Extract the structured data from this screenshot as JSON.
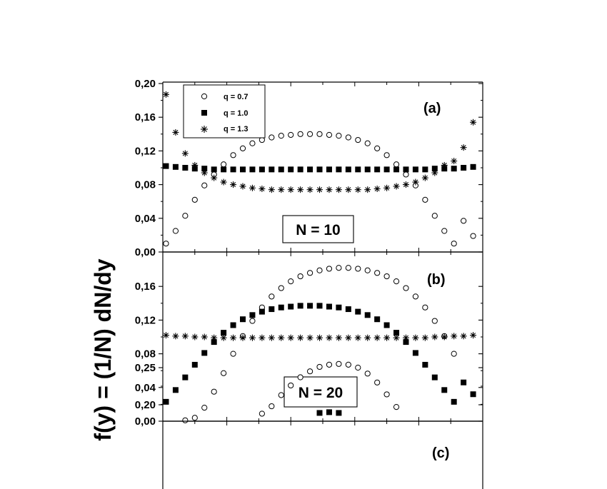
{
  "figure": {
    "ylabel": "f(y) = (1/N) dN/dy"
  },
  "legend": {
    "items": [
      {
        "label": "q = 0.7",
        "marker": "open-circle"
      },
      {
        "label": "q = 1.0",
        "marker": "filled-square"
      },
      {
        "label": "q = 1.3",
        "marker": "asterisk"
      }
    ]
  },
  "chart_data": [
    {
      "type": "scatter",
      "panel_label": "(a)",
      "annotation": "N = 10",
      "ylim": [
        0,
        0.2
      ],
      "yticks": [
        "0,00",
        "0,04",
        "0,08",
        "0,12",
        "0,16",
        "0,20"
      ],
      "ytick_values": [
        0,
        0.04,
        0.08,
        0.12,
        0.16,
        0.2
      ],
      "grid": false,
      "legend_position": "top-left",
      "series": [
        {
          "name": "q = 0.7",
          "marker": "open-circle",
          "x": [
            0.01,
            0.04,
            0.07,
            0.1,
            0.13,
            0.16,
            0.19,
            0.22,
            0.25,
            0.28,
            0.31,
            0.34,
            0.37,
            0.4,
            0.43,
            0.46,
            0.49,
            0.52,
            0.55,
            0.58,
            0.61,
            0.64,
            0.67,
            0.7,
            0.73,
            0.76,
            0.79,
            0.82,
            0.85,
            0.88,
            0.91,
            0.94,
            0.97
          ],
          "y": [
            0.01,
            0.025,
            0.043,
            0.062,
            0.079,
            0.092,
            0.104,
            0.115,
            0.123,
            0.129,
            0.133,
            0.136,
            0.138,
            0.139,
            0.14,
            0.14,
            0.14,
            0.139,
            0.138,
            0.136,
            0.133,
            0.129,
            0.123,
            0.115,
            0.104,
            0.092,
            0.079,
            0.062,
            0.043,
            0.025,
            0.01,
            0.037,
            0.019
          ]
        },
        {
          "name": "q = 1.0",
          "marker": "filled-square",
          "x": [
            0.01,
            0.04,
            0.07,
            0.1,
            0.13,
            0.16,
            0.19,
            0.22,
            0.25,
            0.28,
            0.31,
            0.34,
            0.37,
            0.4,
            0.43,
            0.46,
            0.49,
            0.52,
            0.55,
            0.58,
            0.61,
            0.64,
            0.67,
            0.7,
            0.73,
            0.76,
            0.79,
            0.82,
            0.85,
            0.88,
            0.91,
            0.94,
            0.97
          ],
          "y": [
            0.102,
            0.101,
            0.1,
            0.099,
            0.099,
            0.098,
            0.098,
            0.098,
            0.098,
            0.098,
            0.098,
            0.098,
            0.098,
            0.098,
            0.098,
            0.098,
            0.098,
            0.098,
            0.098,
            0.098,
            0.098,
            0.098,
            0.098,
            0.098,
            0.098,
            0.098,
            0.098,
            0.098,
            0.099,
            0.099,
            0.099,
            0.1,
            0.101
          ]
        },
        {
          "name": "q = 1.3",
          "marker": "asterisk",
          "x": [
            0.01,
            0.04,
            0.07,
            0.1,
            0.13,
            0.16,
            0.19,
            0.22,
            0.25,
            0.28,
            0.31,
            0.34,
            0.37,
            0.4,
            0.43,
            0.46,
            0.49,
            0.52,
            0.55,
            0.58,
            0.61,
            0.64,
            0.67,
            0.7,
            0.73,
            0.76,
            0.79,
            0.82,
            0.85,
            0.88,
            0.91,
            0.94,
            0.97
          ],
          "y": [
            0.187,
            0.142,
            0.117,
            0.103,
            0.094,
            0.088,
            0.083,
            0.08,
            0.078,
            0.076,
            0.075,
            0.074,
            0.074,
            0.074,
            0.074,
            0.074,
            0.074,
            0.074,
            0.074,
            0.074,
            0.074,
            0.074,
            0.075,
            0.076,
            0.078,
            0.08,
            0.083,
            0.088,
            0.094,
            0.103,
            0.108,
            0.124,
            0.154
          ]
        }
      ]
    },
    {
      "type": "scatter",
      "panel_label": "(b)",
      "annotation": "N = 20",
      "ylim": [
        0,
        0.2
      ],
      "yticks": [
        "0,00",
        "0,04",
        "0,08",
        "0,12",
        "0,16"
      ],
      "ytick_values": [
        0,
        0.04,
        0.08,
        0.12,
        0.16
      ],
      "grid": false,
      "series": [
        {
          "name": "q = 0.7",
          "marker": "open-circle",
          "x": [
            0.07,
            0.1,
            0.13,
            0.16,
            0.19,
            0.22,
            0.25,
            0.28,
            0.31,
            0.34,
            0.37,
            0.4,
            0.43,
            0.46,
            0.49,
            0.52,
            0.55,
            0.58,
            0.61,
            0.64,
            0.67,
            0.7,
            0.73,
            0.76,
            0.79,
            0.82,
            0.85,
            0.88,
            0.91
          ],
          "y": [
            0.001,
            0.004,
            0.016,
            0.035,
            0.057,
            0.08,
            0.101,
            0.119,
            0.135,
            0.148,
            0.158,
            0.166,
            0.172,
            0.176,
            0.179,
            0.181,
            0.182,
            0.182,
            0.181,
            0.179,
            0.176,
            0.172,
            0.166,
            0.158,
            0.148,
            0.135,
            0.119,
            0.101,
            0.08
          ]
        },
        {
          "name": "q = 1.0",
          "marker": "filled-square",
          "x": [
            0.01,
            0.04,
            0.07,
            0.1,
            0.13,
            0.16,
            0.19,
            0.22,
            0.25,
            0.28,
            0.31,
            0.34,
            0.37,
            0.4,
            0.43,
            0.46,
            0.49,
            0.52,
            0.55,
            0.58,
            0.61,
            0.64,
            0.67,
            0.7,
            0.73,
            0.76,
            0.79,
            0.82,
            0.85,
            0.88,
            0.91,
            0.94,
            0.97
          ],
          "y": [
            0.023,
            0.037,
            0.052,
            0.067,
            0.081,
            0.094,
            0.105,
            0.114,
            0.121,
            0.126,
            0.13,
            0.133,
            0.135,
            0.136,
            0.137,
            0.137,
            0.137,
            0.136,
            0.135,
            0.133,
            0.13,
            0.126,
            0.121,
            0.114,
            0.105,
            0.094,
            0.081,
            0.067,
            0.052,
            0.037,
            0.023,
            0.046,
            0.032
          ]
        },
        {
          "name": "q = 1.3",
          "marker": "asterisk",
          "x": [
            0.01,
            0.04,
            0.07,
            0.1,
            0.13,
            0.16,
            0.19,
            0.22,
            0.25,
            0.28,
            0.31,
            0.34,
            0.37,
            0.4,
            0.43,
            0.46,
            0.49,
            0.52,
            0.55,
            0.58,
            0.61,
            0.64,
            0.67,
            0.7,
            0.73,
            0.76,
            0.79,
            0.82,
            0.85,
            0.88,
            0.91,
            0.94,
            0.97
          ],
          "y": [
            0.102,
            0.101,
            0.101,
            0.1,
            0.1,
            0.099,
            0.099,
            0.099,
            0.099,
            0.099,
            0.099,
            0.099,
            0.099,
            0.099,
            0.099,
            0.099,
            0.099,
            0.099,
            0.099,
            0.099,
            0.099,
            0.099,
            0.099,
            0.099,
            0.099,
            0.099,
            0.099,
            0.099,
            0.1,
            0.1,
            0.101,
            0.101,
            0.102
          ]
        }
      ]
    },
    {
      "type": "scatter",
      "panel_label": "(c)",
      "annotation": "",
      "ylim": [
        0,
        0.3
      ],
      "yticks": [
        "0,20",
        "0,25"
      ],
      "ytick_values": [
        0.2,
        0.25
      ],
      "grid": false,
      "series": [
        {
          "name": "q = 0.7",
          "marker": "open-circle",
          "x": [
            0.31,
            0.34,
            0.37,
            0.4,
            0.43,
            0.46,
            0.49,
            0.52,
            0.55,
            0.58,
            0.61,
            0.64,
            0.67,
            0.7,
            0.73
          ],
          "y": [
            0.188,
            0.198,
            0.213,
            0.226,
            0.237,
            0.245,
            0.251,
            0.254,
            0.255,
            0.254,
            0.25,
            0.242,
            0.23,
            0.214,
            0.197
          ]
        },
        {
          "name": "q = 1.0",
          "marker": "filled-square",
          "x": [
            0.49,
            0.52,
            0.55
          ],
          "y": [
            0.189,
            0.19,
            0.189
          ]
        }
      ]
    }
  ]
}
